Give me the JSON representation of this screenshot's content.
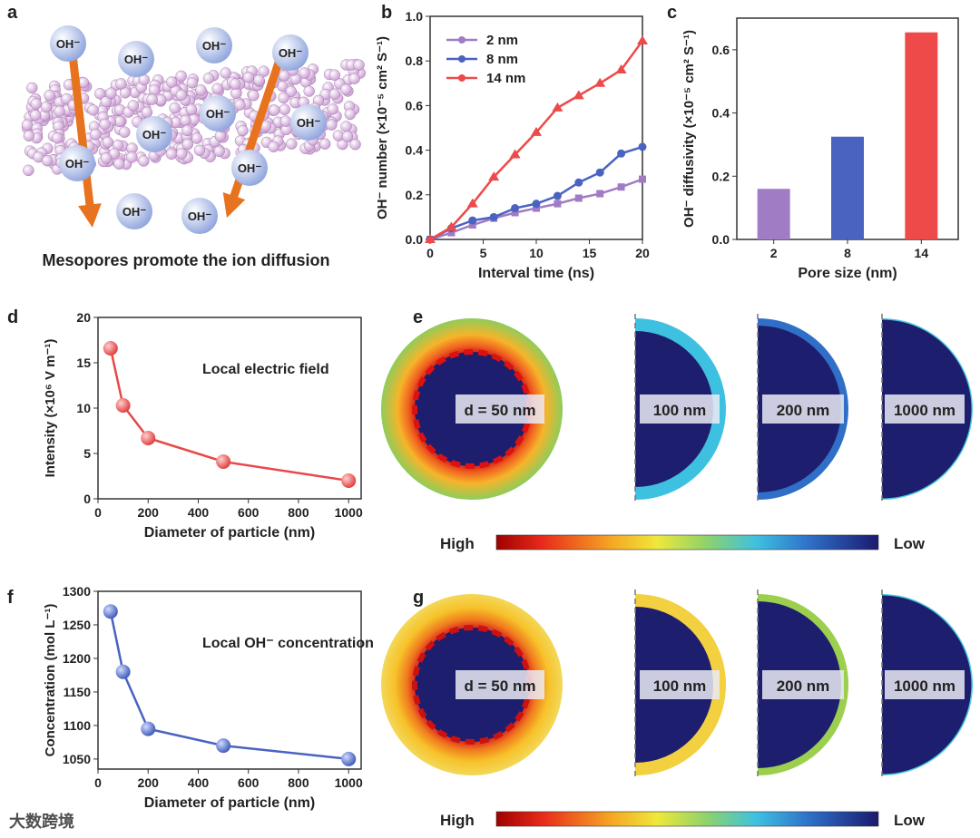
{
  "panel_labels": {
    "a": "a",
    "b": "b",
    "c": "c",
    "d": "d",
    "e": "e",
    "f": "f",
    "g": "g"
  },
  "schematic": {
    "caption": "Mesopores promote the ion diffusion",
    "ion_label": "OH⁻",
    "colors": {
      "particle": "#e6c3e6",
      "arrow": "#e8731e",
      "ion": "#b9c8ee"
    }
  },
  "watermark": "大数跨境",
  "chart_data": [
    {
      "id": "b",
      "type": "line",
      "xlabel": "Interval time (ns)",
      "ylabel": "OH⁻ number (×10⁻⁵ cm² S⁻¹)",
      "xlim": [
        0,
        20
      ],
      "ylim": [
        0,
        1.0
      ],
      "xticks": [
        0,
        5,
        10,
        15,
        20
      ],
      "yticks": [
        0.0,
        0.2,
        0.4,
        0.6,
        0.8,
        1.0
      ],
      "ytick_labels": [
        "0.0",
        "0.2",
        "0.4",
        "0.6",
        "0.8",
        "1.0"
      ],
      "x": [
        0,
        2,
        4,
        6,
        8,
        10,
        12,
        14,
        16,
        18,
        20
      ],
      "legend": "top-left",
      "series": [
        {
          "name": "2 nm",
          "marker": "square",
          "color": "#a07cc5",
          "values": [
            0,
            0.03,
            0.065,
            0.095,
            0.12,
            0.14,
            0.16,
            0.185,
            0.205,
            0.235,
            0.27
          ]
        },
        {
          "name": "8 nm",
          "marker": "circle",
          "color": "#4a63c0",
          "values": [
            0,
            0.05,
            0.085,
            0.1,
            0.14,
            0.16,
            0.195,
            0.255,
            0.3,
            0.385,
            0.415
          ]
        },
        {
          "name": "14 nm",
          "marker": "triangle",
          "color": "#ee4a4a",
          "values": [
            0,
            0.055,
            0.16,
            0.28,
            0.38,
            0.48,
            0.59,
            0.645,
            0.7,
            0.76,
            0.89
          ]
        }
      ]
    },
    {
      "id": "c",
      "type": "bar",
      "xlabel": "Pore size (nm)",
      "ylabel": "OH⁻ diffusivity (×10⁻⁵ cm² S⁻¹)",
      "categories": [
        "2",
        "8",
        "14"
      ],
      "values": [
        0.16,
        0.325,
        0.655
      ],
      "colors": [
        "#a07cc5",
        "#4a63c0",
        "#ee4a4a"
      ],
      "ylim": [
        0,
        0.7
      ],
      "yticks": [
        0.0,
        0.2,
        0.4,
        0.6
      ],
      "ytick_labels": [
        "0.0",
        "0.2",
        "0.4",
        "0.6"
      ]
    },
    {
      "id": "d",
      "type": "line",
      "title": "Local electric field",
      "xlabel": "Diameter of particle (nm)",
      "ylabel": "Intensity (×10⁶ V m⁻¹)",
      "xlim": [
        0,
        1050
      ],
      "ylim": [
        0,
        20
      ],
      "xticks": [
        0,
        200,
        400,
        600,
        800,
        1000
      ],
      "yticks": [
        0,
        5,
        10,
        15,
        20
      ],
      "x": [
        50,
        100,
        200,
        500,
        1000
      ],
      "series": [
        {
          "name": "Local electric field",
          "color": "#e84848",
          "values": [
            16.6,
            10.3,
            6.7,
            4.1,
            2.0
          ]
        }
      ]
    },
    {
      "id": "f",
      "type": "line",
      "title": "Local OH⁻ concentration",
      "xlabel": "Diameter of particle (nm)",
      "ylabel": "Concentration (mol L⁻¹)",
      "xlim": [
        0,
        1050
      ],
      "ylim": [
        1035,
        1300
      ],
      "xticks": [
        0,
        200,
        400,
        600,
        800,
        1000
      ],
      "yticks": [
        1050,
        1100,
        1150,
        1200,
        1250,
        1300
      ],
      "x": [
        50,
        100,
        200,
        500,
        1000
      ],
      "series": [
        {
          "name": "Local OH⁻ concentration",
          "color": "#4a63c0",
          "values": [
            1270,
            1180,
            1095,
            1070,
            1050
          ]
        }
      ]
    }
  ],
  "maps": {
    "e": {
      "labels": [
        "d = 50 nm",
        "100 nm",
        "200 nm",
        "1000 nm"
      ],
      "high": "High",
      "low": "Low"
    },
    "g": {
      "labels": [
        "d = 50 nm",
        "100 nm",
        "200 nm",
        "1000 nm"
      ],
      "high": "High",
      "low": "Low"
    }
  }
}
